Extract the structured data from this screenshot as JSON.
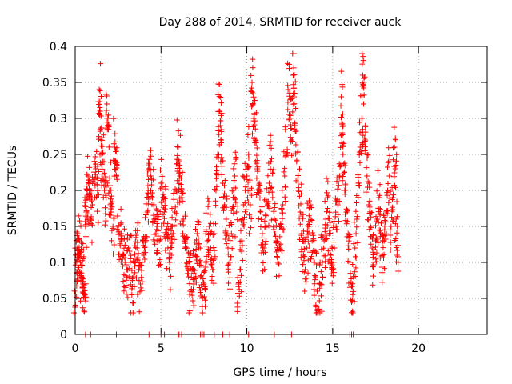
{
  "chart_data": {
    "type": "scatter",
    "title": "Day 288 of 2014, SRMTID for receiver auck",
    "xlabel": "GPS time / hours",
    "ylabel": "SRMTID / TECUs",
    "xlim": [
      0,
      24
    ],
    "ylim": [
      0,
      0.4
    ],
    "x_ticks": [
      0,
      5,
      10,
      15,
      20
    ],
    "x_tick_labels": [
      "0",
      "5",
      "10",
      "15",
      "20"
    ],
    "y_ticks": [
      0,
      0.05,
      0.1,
      0.15,
      0.2,
      0.25,
      0.3,
      0.35,
      0.4
    ],
    "y_tick_labels": [
      "0",
      "0.05",
      "0.1",
      "0.15",
      "0.2",
      "0.25",
      "0.3",
      "0.35",
      "0.4"
    ],
    "grid": true,
    "marker": "+",
    "series": [
      {
        "name": "SRMTID",
        "color": "#ff0000",
        "points": [
          [
            0.0,
            0.045
          ],
          [
            0.05,
            0.1
          ],
          [
            0.1,
            0.12
          ],
          [
            0.15,
            0.09
          ],
          [
            0.2,
            0.11
          ],
          [
            0.25,
            0.13
          ],
          [
            0.3,
            0.1
          ],
          [
            0.35,
            0.08
          ],
          [
            0.4,
            0.095
          ],
          [
            0.45,
            0.07
          ],
          [
            0.5,
            0.065
          ],
          [
            0.55,
            0.055
          ],
          [
            0.6,
            0.15
          ],
          [
            0.65,
            0.17
          ],
          [
            0.7,
            0.2
          ],
          [
            0.75,
            0.22
          ],
          [
            0.8,
            0.19
          ],
          [
            0.9,
            0.16
          ],
          [
            1.0,
            0.18
          ],
          [
            1.1,
            0.21
          ],
          [
            1.2,
            0.23
          ],
          [
            1.3,
            0.195
          ],
          [
            1.4,
            0.34
          ],
          [
            1.45,
            0.31
          ],
          [
            1.5,
            0.27
          ],
          [
            1.55,
            0.25
          ],
          [
            1.6,
            0.24
          ],
          [
            1.7,
            0.2
          ],
          [
            1.8,
            0.19
          ],
          [
            1.85,
            0.32
          ],
          [
            1.9,
            0.3
          ],
          [
            2.0,
            0.2
          ],
          [
            2.1,
            0.17
          ],
          [
            2.2,
            0.15
          ],
          [
            2.3,
            0.26
          ],
          [
            2.35,
            0.24
          ],
          [
            2.4,
            0.22
          ],
          [
            2.5,
            0.15
          ],
          [
            2.6,
            0.14
          ],
          [
            2.7,
            0.13
          ],
          [
            2.8,
            0.11
          ],
          [
            2.9,
            0.1
          ],
          [
            3.0,
            0.09
          ],
          [
            3.1,
            0.12
          ],
          [
            3.2,
            0.1
          ],
          [
            3.3,
            0.055
          ],
          [
            3.4,
            0.08
          ],
          [
            3.5,
            0.1
          ],
          [
            3.6,
            0.12
          ],
          [
            3.7,
            0.09
          ],
          [
            3.8,
            0.07
          ],
          [
            3.9,
            0.1
          ],
          [
            4.0,
            0.11
          ],
          [
            4.1,
            0.13
          ],
          [
            4.2,
            0.17
          ],
          [
            4.25,
            0.2
          ],
          [
            4.3,
            0.23
          ],
          [
            4.4,
            0.22
          ],
          [
            4.5,
            0.19
          ],
          [
            4.6,
            0.16
          ],
          [
            4.7,
            0.14
          ],
          [
            4.8,
            0.15
          ],
          [
            4.9,
            0.13
          ],
          [
            5.0,
            0.21
          ],
          [
            5.1,
            0.19
          ],
          [
            5.2,
            0.17
          ],
          [
            5.3,
            0.15
          ],
          [
            5.4,
            0.12
          ],
          [
            5.5,
            0.1
          ],
          [
            5.6,
            0.11
          ],
          [
            5.7,
            0.14
          ],
          [
            5.8,
            0.17
          ],
          [
            5.9,
            0.2
          ],
          [
            6.0,
            0.26
          ],
          [
            6.05,
            0.24
          ],
          [
            6.1,
            0.22
          ],
          [
            6.2,
            0.19
          ],
          [
            6.3,
            0.16
          ],
          [
            6.4,
            0.13
          ],
          [
            6.5,
            0.1
          ],
          [
            6.6,
            0.08
          ],
          [
            6.7,
            0.06
          ],
          [
            6.8,
            0.09
          ],
          [
            6.9,
            0.07
          ],
          [
            7.0,
            0.11
          ],
          [
            7.1,
            0.14
          ],
          [
            7.2,
            0.12
          ],
          [
            7.3,
            0.08
          ],
          [
            7.4,
            0.05
          ],
          [
            7.5,
            0.07
          ],
          [
            7.6,
            0.1
          ],
          [
            7.7,
            0.13
          ],
          [
            7.8,
            0.15
          ],
          [
            7.9,
            0.12
          ],
          [
            8.0,
            0.09
          ],
          [
            8.1,
            0.14
          ],
          [
            8.2,
            0.2
          ],
          [
            8.3,
            0.25
          ],
          [
            8.4,
            0.31
          ],
          [
            8.45,
            0.29
          ],
          [
            8.5,
            0.27
          ],
          [
            8.6,
            0.21
          ],
          [
            8.7,
            0.18
          ],
          [
            8.8,
            0.16
          ],
          [
            8.9,
            0.12
          ],
          [
            9.0,
            0.1
          ],
          [
            9.1,
            0.14
          ],
          [
            9.2,
            0.19
          ],
          [
            9.3,
            0.22
          ],
          [
            9.4,
            0.17
          ],
          [
            9.5,
            0.07
          ],
          [
            9.6,
            0.09
          ],
          [
            9.7,
            0.13
          ],
          [
            9.8,
            0.18
          ],
          [
            9.9,
            0.2
          ],
          [
            10.0,
            0.22
          ],
          [
            10.1,
            0.25
          ],
          [
            10.2,
            0.18
          ],
          [
            10.3,
            0.35
          ],
          [
            10.35,
            0.32
          ],
          [
            10.4,
            0.3
          ],
          [
            10.5,
            0.27
          ],
          [
            10.6,
            0.23
          ],
          [
            10.7,
            0.2
          ],
          [
            10.8,
            0.17
          ],
          [
            10.9,
            0.14
          ],
          [
            11.0,
            0.12
          ],
          [
            11.1,
            0.15
          ],
          [
            11.2,
            0.18
          ],
          [
            11.3,
            0.21
          ],
          [
            11.4,
            0.24
          ],
          [
            11.5,
            0.19
          ],
          [
            11.6,
            0.16
          ],
          [
            11.7,
            0.13
          ],
          [
            11.8,
            0.1
          ],
          [
            11.9,
            0.12
          ],
          [
            12.0,
            0.15
          ],
          [
            12.1,
            0.18
          ],
          [
            12.2,
            0.22
          ],
          [
            12.3,
            0.25
          ],
          [
            12.4,
            0.34
          ],
          [
            12.5,
            0.3
          ],
          [
            12.6,
            0.27
          ],
          [
            12.7,
            0.36
          ],
          [
            12.75,
            0.33
          ],
          [
            12.8,
            0.29
          ],
          [
            12.9,
            0.24
          ],
          [
            13.0,
            0.2
          ],
          [
            13.1,
            0.17
          ],
          [
            13.2,
            0.14
          ],
          [
            13.3,
            0.11
          ],
          [
            13.4,
            0.09
          ],
          [
            13.5,
            0.12
          ],
          [
            13.6,
            0.15
          ],
          [
            13.7,
            0.18
          ],
          [
            13.8,
            0.13
          ],
          [
            13.9,
            0.1
          ],
          [
            14.0,
            0.08
          ],
          [
            14.1,
            0.06
          ],
          [
            14.2,
            0.035
          ],
          [
            14.3,
            0.07
          ],
          [
            14.4,
            0.1
          ],
          [
            14.5,
            0.13
          ],
          [
            14.6,
            0.16
          ],
          [
            14.7,
            0.19
          ],
          [
            14.8,
            0.14
          ],
          [
            14.9,
            0.11
          ],
          [
            15.0,
            0.09
          ],
          [
            15.1,
            0.12
          ],
          [
            15.2,
            0.15
          ],
          [
            15.3,
            0.18
          ],
          [
            15.4,
            0.22
          ],
          [
            15.5,
            0.33
          ],
          [
            15.55,
            0.28
          ],
          [
            15.6,
            0.25
          ],
          [
            15.7,
            0.2
          ],
          [
            15.8,
            0.17
          ],
          [
            15.9,
            0.14
          ],
          [
            16.0,
            0.1
          ],
          [
            16.1,
            0.045
          ],
          [
            16.2,
            0.08
          ],
          [
            16.3,
            0.12
          ],
          [
            16.4,
            0.16
          ],
          [
            16.5,
            0.21
          ],
          [
            16.6,
            0.26
          ],
          [
            16.7,
            0.3
          ],
          [
            16.75,
            0.36
          ],
          [
            16.8,
            0.32
          ],
          [
            16.9,
            0.27
          ],
          [
            17.0,
            0.22
          ],
          [
            17.1,
            0.18
          ],
          [
            17.2,
            0.15
          ],
          [
            17.3,
            0.12
          ],
          [
            17.4,
            0.1
          ],
          [
            17.5,
            0.13
          ],
          [
            17.6,
            0.16
          ],
          [
            17.7,
            0.19
          ],
          [
            17.8,
            0.14
          ],
          [
            17.9,
            0.11
          ],
          [
            18.0,
            0.13
          ],
          [
            18.1,
            0.17
          ],
          [
            18.2,
            0.2
          ],
          [
            18.3,
            0.22
          ],
          [
            18.4,
            0.15
          ],
          [
            18.5,
            0.19
          ],
          [
            18.6,
            0.26
          ],
          [
            18.65,
            0.23
          ],
          [
            18.7,
            0.16
          ],
          [
            18.75,
            0.11
          ]
        ]
      }
    ],
    "zero_points_x": [
      0.6,
      0.9,
      2.4,
      4.3,
      5.0,
      5.2,
      6.0,
      6.05,
      6.2,
      7.3,
      7.4,
      7.5,
      8.1,
      8.6,
      9.0,
      10.1,
      11.6,
      12.6,
      16.0,
      16.1,
      16.2
    ]
  }
}
